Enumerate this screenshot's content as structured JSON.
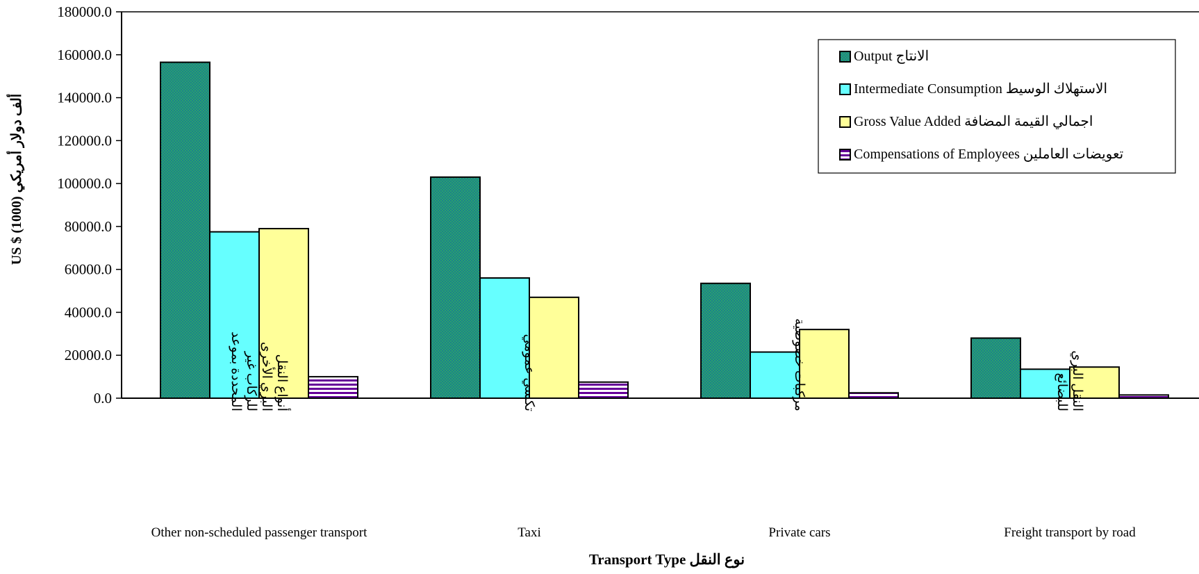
{
  "chart_data": {
    "type": "bar",
    "title": "",
    "xlabel": "Transport Type نوع النقل",
    "ylabel": "US $ (1000) ألف دولار أمريكي",
    "ylim": [
      0,
      180000
    ],
    "ytick_labels": [
      "0.0",
      "20000.0",
      "40000.0",
      "60000.0",
      "80000.0",
      "100000.0",
      "120000.0",
      "140000.0",
      "160000.0",
      "180000.0"
    ],
    "categories": [
      "Other non-scheduled passenger transport",
      "Taxi",
      "Private cars",
      "Freight transport by road"
    ],
    "categories_ar": [
      "أنواع النقل البري الأخرى للركاب غير المحددة بموعد",
      "تكسي عمومي",
      "مركبات خصوصية",
      "النقل البري للبضائع"
    ],
    "series": [
      {
        "name": "Output الانتاج",
        "values": [
          156500,
          103000,
          53500,
          28000
        ],
        "color": "#1f9e6e",
        "pattern": "checker"
      },
      {
        "name": "Intermediate Consumption الاستهلاك الوسيط",
        "values": [
          77500,
          56000,
          21500,
          13500
        ],
        "color": "#66ffff",
        "pattern": "solid"
      },
      {
        "name": "Gross Value Added اجمالي القيمة المضافة",
        "values": [
          79000,
          47000,
          32000,
          14500
        ],
        "color": "#ffff99",
        "pattern": "solid"
      },
      {
        "name": "Compensations of Employees تعويضات العاملين",
        "values": [
          10000,
          7500,
          2500,
          1500
        ],
        "color": "#660099",
        "pattern": "hstripe"
      }
    ],
    "legend_position": "top-right",
    "grid": false
  }
}
